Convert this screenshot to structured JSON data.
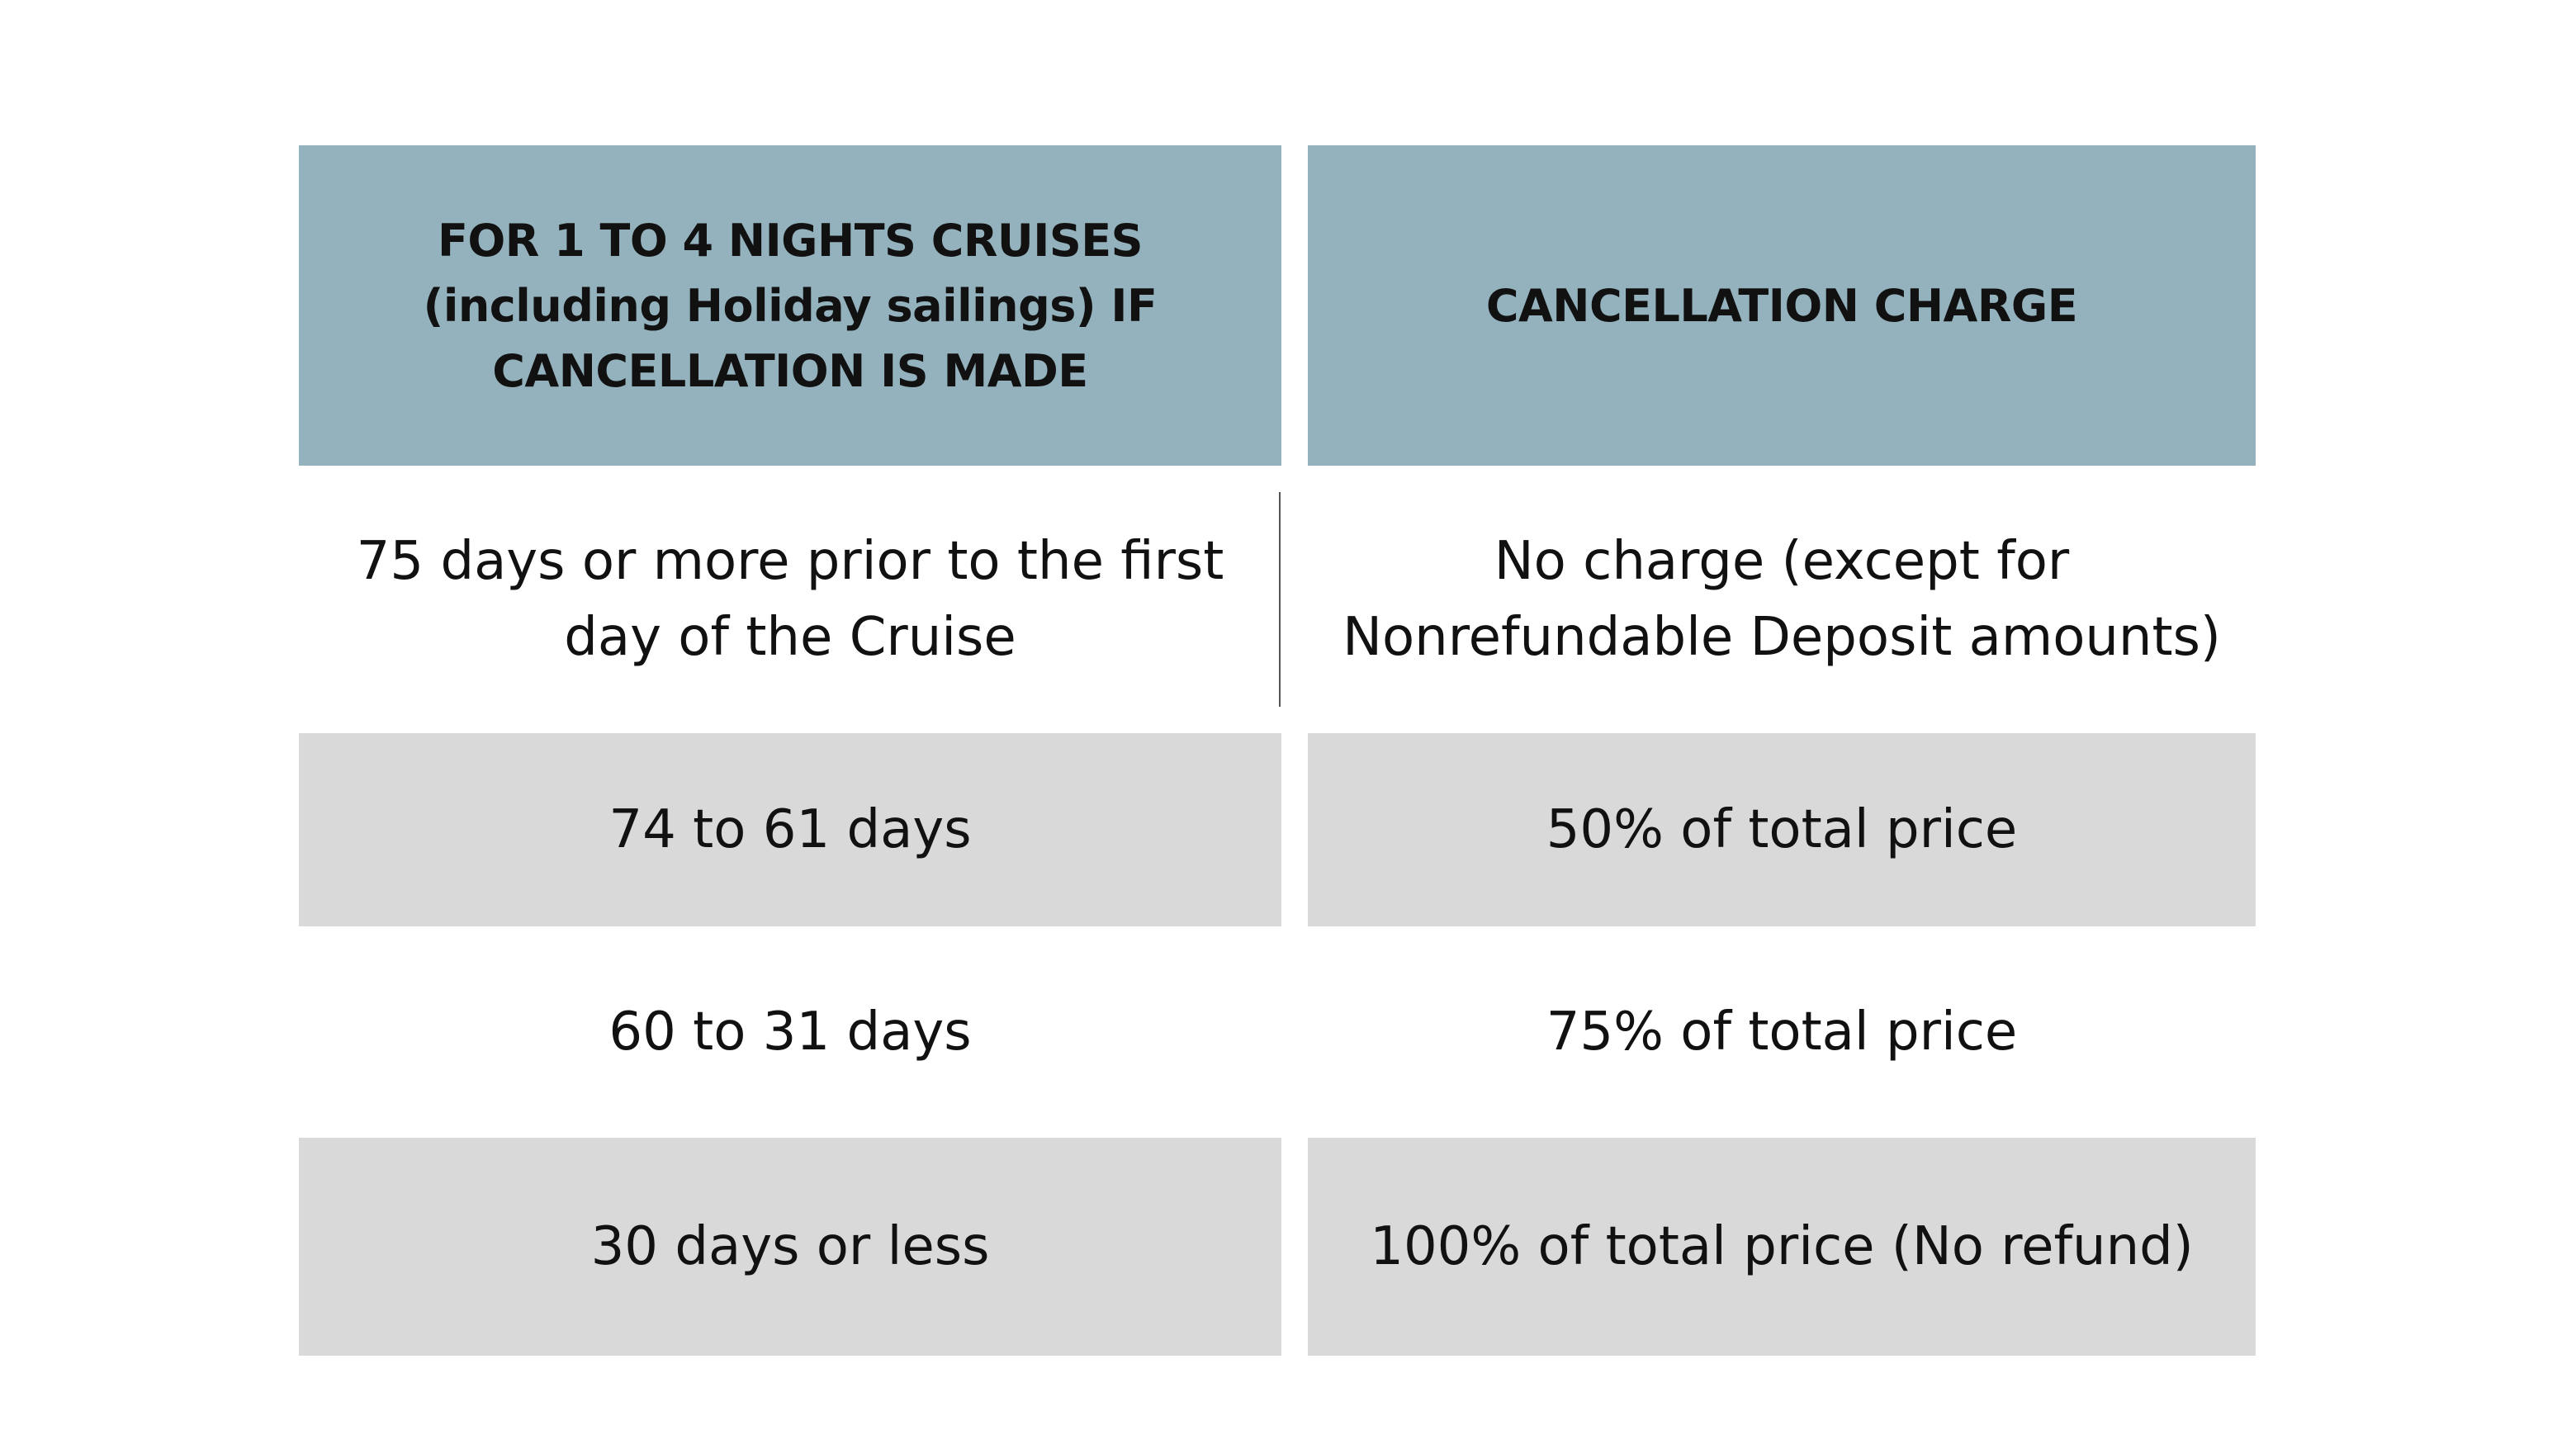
{
  "table": {
    "header": {
      "left": "FOR 1 TO 4 NIGHTS CRUISES (including Holiday sailings) IF CANCELLATION IS MADE",
      "right": "CANCELLATION CHARGE"
    },
    "rows": [
      {
        "when": "75 days or more prior to the first day of the Cruise",
        "charge": "No charge (except for Nonrefundable Deposit amounts)"
      },
      {
        "when": "74 to 61 days",
        "charge": "50% of total price"
      },
      {
        "when": "60 to 31 days",
        "charge": "75% of total price"
      },
      {
        "when": "30 days or less",
        "charge": "100% of total price (No refund)"
      }
    ],
    "colors": {
      "header_bg": "#94b2bd",
      "shaded_row_bg": "#d9d9d9",
      "text": "#111111"
    }
  }
}
